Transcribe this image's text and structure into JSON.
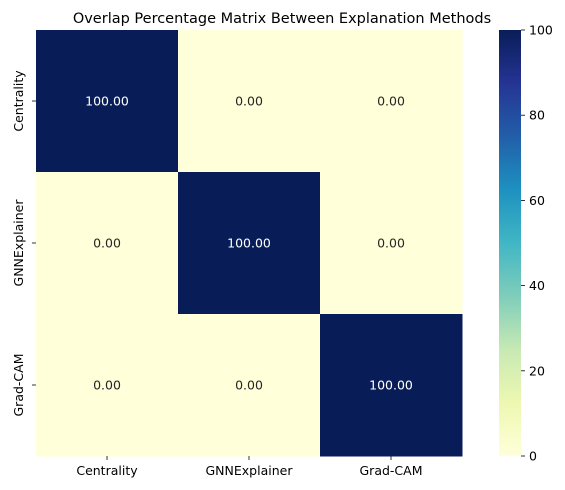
{
  "chart_data": {
    "type": "heatmap",
    "title": "Overlap Percentage Matrix Between Explanation Methods",
    "x_categories": [
      "Centrality",
      "GNNExplainer",
      "Grad-CAM"
    ],
    "y_categories": [
      "Centrality",
      "GNNExplainer",
      "Grad-CAM"
    ],
    "values": [
      [
        100.0,
        0.0,
        0.0
      ],
      [
        0.0,
        100.0,
        0.0
      ],
      [
        0.0,
        0.0,
        100.0
      ]
    ],
    "value_labels": [
      [
        "100.00",
        "0.00",
        "0.00"
      ],
      [
        "0.00",
        "100.00",
        "0.00"
      ],
      [
        "0.00",
        "0.00",
        "100.00"
      ]
    ],
    "colorbar": {
      "range": [
        0,
        100
      ],
      "ticks": [
        0,
        20,
        40,
        60,
        80,
        100
      ],
      "colormap": "YlGnBu",
      "colors": [
        "#ffffd9",
        "#edf8b1",
        "#c7e9b4",
        "#7fcdbb",
        "#41b6c4",
        "#1d91c0",
        "#225ea8",
        "#253494",
        "#081d58"
      ]
    },
    "annotation_color_on_dark": "#ffffff",
    "annotation_color_on_light": "#262626"
  }
}
